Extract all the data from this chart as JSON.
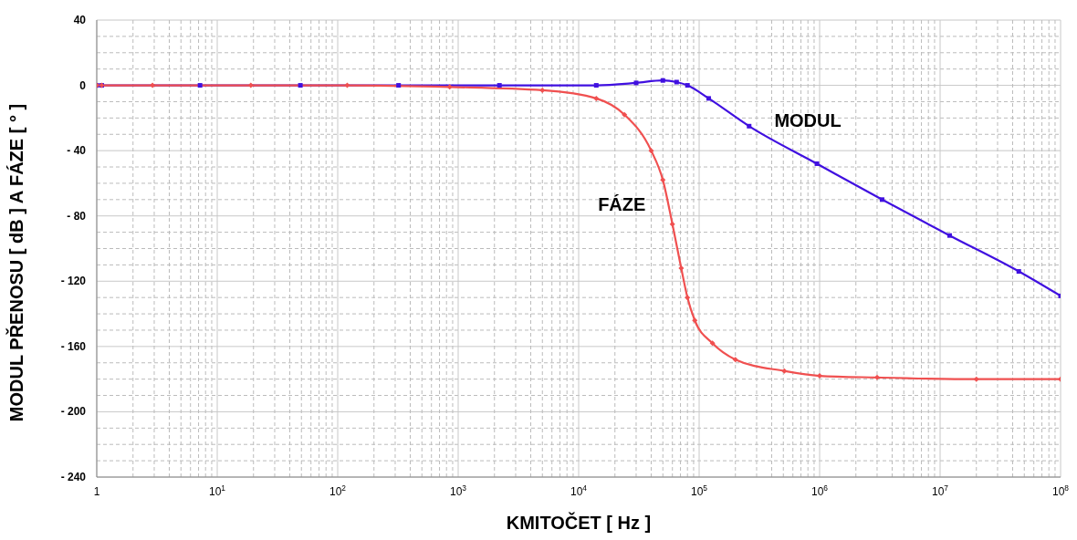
{
  "chart_data": {
    "type": "line",
    "xlabel": "KMITOČET [ Hz ]",
    "ylabel": "MODUL PŘENOSU [ dB ] A FÁZE [ ° ]",
    "log": "x",
    "grid": true,
    "line_style": "solid",
    "xlim": [
      1,
      100000000
    ],
    "ylim": [
      -240,
      40
    ],
    "xticks": [
      {
        "value": 1,
        "label": "1"
      },
      {
        "value": 2,
        "label": null
      },
      {
        "value": 3,
        "label": null
      },
      {
        "value": 4,
        "label": null
      },
      {
        "value": 5,
        "label": null
      },
      {
        "value": 6,
        "label": null
      },
      {
        "value": 7,
        "label": null
      },
      {
        "value": 8,
        "label": null
      },
      {
        "value": 9,
        "label": null
      },
      {
        "value": 10,
        "label": "10$^{1}$"
      },
      {
        "value": 20,
        "label": null
      },
      {
        "value": 30,
        "label": null
      },
      {
        "value": 40,
        "label": null
      },
      {
        "value": 50,
        "label": null
      },
      {
        "value": 60,
        "label": null
      },
      {
        "value": 70,
        "label": null
      },
      {
        "value": 80,
        "label": null
      },
      {
        "value": 90,
        "label": null
      },
      {
        "value": 100,
        "label": "10$^{2}$"
      },
      {
        "value": 200,
        "label": null
      },
      {
        "value": 300,
        "label": null
      },
      {
        "value": 400,
        "label": null
      },
      {
        "value": 500,
        "label": null
      },
      {
        "value": 600,
        "label": null
      },
      {
        "value": 700,
        "label": null
      },
      {
        "value": 800,
        "label": null
      },
      {
        "value": 900,
        "label": null
      },
      {
        "value": 1000,
        "label": "10$^{3}$"
      },
      {
        "value": 2000,
        "label": null
      },
      {
        "value": 3000,
        "label": null
      },
      {
        "value": 4000,
        "label": null
      },
      {
        "value": 5000,
        "label": null
      },
      {
        "value": 6000,
        "label": null
      },
      {
        "value": 7000,
        "label": null
      },
      {
        "value": 8000,
        "label": null
      },
      {
        "value": 9000,
        "label": null
      },
      {
        "value": 10000,
        "label": "10$^{4}$"
      },
      {
        "value": 20000,
        "label": null
      },
      {
        "value": 30000,
        "label": null
      },
      {
        "value": 40000,
        "label": null
      },
      {
        "value": 50000,
        "label": null
      },
      {
        "value": 60000,
        "label": null
      },
      {
        "value": 70000,
        "label": null
      },
      {
        "value": 80000,
        "label": null
      },
      {
        "value": 90000,
        "label": null
      },
      {
        "value": 100000,
        "label": "10$^{5}$"
      },
      {
        "value": 200000,
        "label": null
      },
      {
        "value": 300000,
        "label": null
      },
      {
        "value": 400000,
        "label": null
      },
      {
        "value": 500000,
        "label": null
      },
      {
        "value": 600000,
        "label": null
      },
      {
        "value": 700000,
        "label": null
      },
      {
        "value": 800000,
        "label": null
      },
      {
        "value": 900000,
        "label": null
      },
      {
        "value": 1000000,
        "label": "10$^{6}$"
      },
      {
        "value": 2000000,
        "label": null
      },
      {
        "value": 3000000,
        "label": null
      },
      {
        "value": 4000000,
        "label": null
      },
      {
        "value": 5000000,
        "label": null
      },
      {
        "value": 6000000,
        "label": null
      },
      {
        "value": 7000000,
        "label": null
      },
      {
        "value": 8000000,
        "label": null
      },
      {
        "value": 9000000,
        "label": null
      },
      {
        "value": 10000000,
        "label": "10$^{7}$"
      },
      {
        "value": 20000000,
        "label": null
      },
      {
        "value": 30000000,
        "label": null
      },
      {
        "value": 40000000,
        "label": null
      },
      {
        "value": 50000000,
        "label": null
      },
      {
        "value": 60000000,
        "label": null
      },
      {
        "value": 70000000,
        "label": null
      },
      {
        "value": 80000000,
        "label": null
      },
      {
        "value": 90000000,
        "label": null
      },
      {
        "value": 100000000,
        "label": "10$^{8}$"
      }
    ],
    "yticks": [
      {
        "value": -240,
        "label": "- 240"
      },
      {
        "value": -230,
        "label": null
      },
      {
        "value": -220,
        "label": null
      },
      {
        "value": -210,
        "label": null
      },
      {
        "value": -200,
        "label": "- 200"
      },
      {
        "value": -190,
        "label": null
      },
      {
        "value": -180,
        "label": null
      },
      {
        "value": -170,
        "label": null
      },
      {
        "value": -160,
        "label": "- 160"
      },
      {
        "value": -150,
        "label": null
      },
      {
        "value": -140,
        "label": null
      },
      {
        "value": -130,
        "label": null
      },
      {
        "value": -120,
        "label": "- 120"
      },
      {
        "value": -110,
        "label": null
      },
      {
        "value": -100,
        "label": null
      },
      {
        "value": -90,
        "label": null
      },
      {
        "value": -80,
        "label": "- 80"
      },
      {
        "value": -70,
        "label": null
      },
      {
        "value": -60,
        "label": null
      },
      {
        "value": -50,
        "label": null
      },
      {
        "value": -40,
        "label": "- 40"
      },
      {
        "value": -30,
        "label": null
      },
      {
        "value": -20,
        "label": null
      },
      {
        "value": -10,
        "label": null
      },
      {
        "value": 0,
        "label": "0"
      },
      {
        "value": 10,
        "label": null
      },
      {
        "value": 20,
        "label": null
      },
      {
        "value": 30,
        "label": null
      },
      {
        "value": 40,
        "label": "40"
      }
    ],
    "series": [
      {
        "name": "MODUL",
        "color": "#4010e0",
        "marker": "square",
        "x": [
          1,
          1.1,
          7.2,
          49,
          320,
          2200,
          14000,
          30000,
          50000,
          65000,
          80000,
          120000,
          260000,
          950000,
          3300000,
          12000000,
          45000000,
          100000000
        ],
        "values": [
          0,
          0,
          0,
          0,
          0,
          0,
          0,
          1.5,
          3,
          2,
          0,
          -8,
          -25,
          -48,
          -70,
          -92,
          -114,
          -129
        ]
      },
      {
        "name": "FÁZE",
        "color": "#f05050",
        "marker": "diamond",
        "x": [
          1,
          1.1,
          2.9,
          19,
          120,
          850,
          5000,
          14000,
          24000,
          40000,
          50000,
          60000,
          71000,
          80000,
          92000,
          129000,
          200000,
          510000,
          1000000,
          3000000,
          20000000,
          100000000
        ],
        "values": [
          0,
          0,
          0,
          0,
          0,
          -1,
          -3,
          -8,
          -18,
          -40,
          -58,
          -85,
          -112,
          -130,
          -144,
          -158,
          -168,
          -175,
          -178,
          -179,
          -180,
          -180
        ]
      }
    ]
  }
}
